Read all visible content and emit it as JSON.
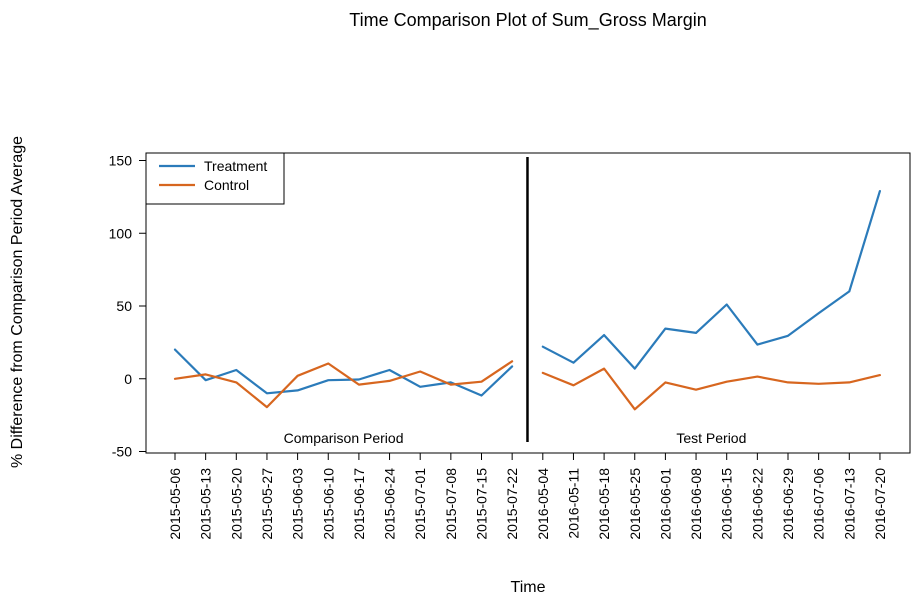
{
  "chart_data": {
    "type": "line",
    "title": "Time Comparison Plot of Sum_Gross Margin",
    "xlabel": "Time",
    "ylabel": "% Difference from Comparison Period Average",
    "ylim": [
      -50,
      150
    ],
    "yticks": [
      -50,
      0,
      50,
      100,
      150
    ],
    "grid": false,
    "legend_position": "top-left",
    "periods": [
      {
        "label": "Comparison Period",
        "x": [
          "2015-05-06",
          "2015-05-13",
          "2015-05-20",
          "2015-05-27",
          "2015-06-03",
          "2015-06-10",
          "2015-06-17",
          "2015-06-24",
          "2015-07-01",
          "2015-07-08",
          "2015-07-15",
          "2015-07-22"
        ],
        "series": [
          {
            "name": "Treatment",
            "color": "#2b7bba",
            "values": [
              20,
              -1,
              6,
              -10,
              -8,
              -1,
              -0.5,
              6,
              -5.5,
              -2.5,
              -11.5,
              8.5
            ]
          },
          {
            "name": "Control",
            "color": "#d7661f",
            "values": [
              0,
              3,
              -2.5,
              -19.5,
              2,
              10.5,
              -4,
              -1.5,
              5,
              -4,
              -2,
              12
            ]
          }
        ]
      },
      {
        "label": "Test Period",
        "x": [
          "2016-05-04",
          "2016-05-11",
          "2016-05-18",
          "2016-05-25",
          "2016-06-01",
          "2016-06-08",
          "2016-06-15",
          "2016-06-22",
          "2016-06-29",
          "2016-07-06",
          "2016-07-13",
          "2016-07-20"
        ],
        "series": [
          {
            "name": "Treatment",
            "color": "#2b7bba",
            "values": [
              22,
              11,
              30,
              7,
              34.5,
              31.5,
              51,
              23.5,
              29.5,
              45,
              60,
              129
            ]
          },
          {
            "name": "Control",
            "color": "#d7661f",
            "values": [
              4,
              -4.5,
              7,
              -21,
              -2.5,
              -7.5,
              -2,
              1.5,
              -2.5,
              -3.5,
              -2.5,
              2.5
            ]
          }
        ]
      }
    ],
    "legend": [
      {
        "name": "Treatment",
        "color": "#2b7bba"
      },
      {
        "name": "Control",
        "color": "#d7661f"
      }
    ]
  }
}
